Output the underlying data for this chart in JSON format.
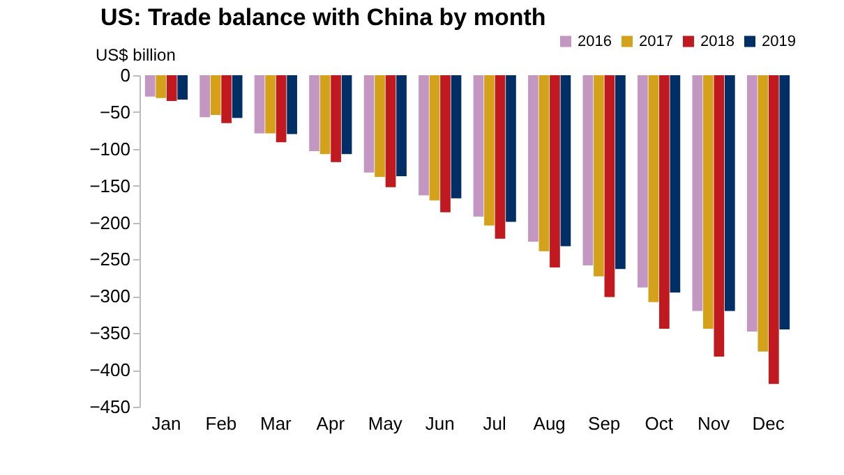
{
  "chart_data": {
    "type": "bar",
    "title": "US: Trade balance with China by month",
    "ylabel": "US$ billion",
    "categories": [
      "Jan",
      "Feb",
      "Mar",
      "Apr",
      "May",
      "Jun",
      "Jul",
      "Aug",
      "Sep",
      "Oct",
      "Nov",
      "Dec"
    ],
    "series": [
      {
        "name": "2016",
        "color": "#c497c3",
        "values": [
          -29,
          -57,
          -79,
          -103,
          -132,
          -163,
          -192,
          -226,
          -258,
          -288,
          -320,
          -348
        ]
      },
      {
        "name": "2017",
        "color": "#d4a21a",
        "values": [
          -31,
          -54,
          -79,
          -107,
          -138,
          -170,
          -204,
          -239,
          -273,
          -308,
          -344,
          -375
        ]
      },
      {
        "name": "2018",
        "color": "#c0191f",
        "values": [
          -35,
          -65,
          -91,
          -118,
          -152,
          -186,
          -222,
          -261,
          -301,
          -344,
          -382,
          -419
        ]
      },
      {
        "name": "2019",
        "color": "#002f66",
        "values": [
          -33,
          -58,
          -80,
          -107,
          -137,
          -167,
          -199,
          -232,
          -263,
          -295,
          -320,
          -345
        ]
      }
    ],
    "ylim": [
      -450,
      0
    ],
    "yticks": [
      0,
      -50,
      -100,
      -150,
      -200,
      -250,
      -300,
      -350,
      -400,
      -450
    ],
    "grid": false,
    "legend": "top right"
  }
}
